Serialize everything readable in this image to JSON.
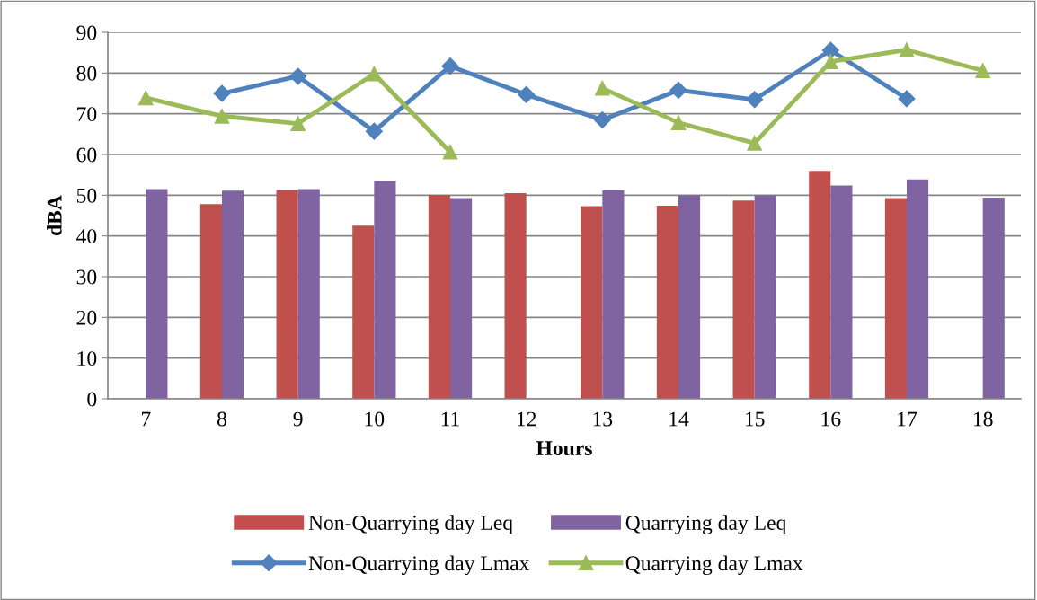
{
  "chart_data": {
    "type": "bar",
    "xlabel": "Hours",
    "ylabel": "dBA",
    "categories": [
      "7",
      "8",
      "9",
      "10",
      "11",
      "12",
      "13",
      "14",
      "15",
      "16",
      "17",
      "18"
    ],
    "ylim": [
      0,
      90
    ],
    "yticks": [
      0,
      10,
      20,
      30,
      40,
      50,
      60,
      70,
      80,
      90
    ],
    "grid": "y",
    "legend": "bottom",
    "series": [
      {
        "name": "Non-Quarrying day Leq",
        "color": "#c0504d",
        "values": [
          null,
          47.8,
          51.3,
          42.5,
          50.1,
          50.5,
          47.3,
          47.4,
          48.7,
          56.0,
          49.3,
          null
        ]
      },
      {
        "name": "Quarrying day Leq",
        "color": "#8064a2",
        "values": [
          51.5,
          51.1,
          51.5,
          53.6,
          49.3,
          null,
          51.2,
          50.0,
          50.0,
          52.4,
          53.9,
          49.4
        ]
      },
      {
        "name": "Non-Quarrying day Lmax",
        "type": "line",
        "color": "#4f81bd",
        "marker": "diamond",
        "values": [
          null,
          75.0,
          79.2,
          65.7,
          81.7,
          74.7,
          68.5,
          75.8,
          73.5,
          85.6,
          73.7,
          null
        ]
      },
      {
        "name": "Quarrying day Lmax",
        "type": "line",
        "color": "#9bbb59",
        "marker": "triangle",
        "values": [
          73.9,
          69.4,
          67.6,
          79.8,
          60.6,
          null,
          76.3,
          67.8,
          62.8,
          82.8,
          85.7,
          80.6
        ]
      }
    ]
  }
}
